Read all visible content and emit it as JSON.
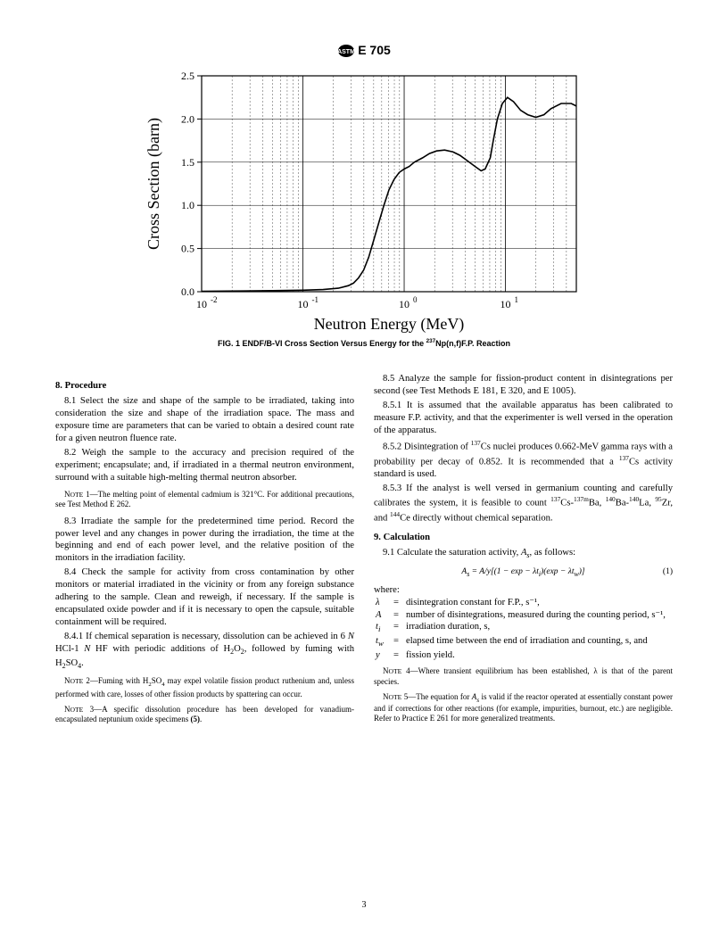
{
  "header": {
    "designation": "E 705"
  },
  "figure": {
    "type": "line",
    "title": "Cross Section (barn)",
    "ylabel": "Cross Section (barn)",
    "xlabel": "Neutron Energy (MeV)",
    "caption_prefix": "FIG. 1 ENDF/B-VI Cross Section Versus Energy for the ",
    "caption_iso": "237",
    "caption_suffix": "Np(n,f)F.P. Reaction",
    "xlim_log": [
      -2,
      1.7
    ],
    "ylim": [
      0.0,
      2.5
    ],
    "ytick_step": 0.5,
    "yticks": [
      "0.0",
      "0.5",
      "1.0",
      "1.5",
      "2.0",
      "2.5"
    ],
    "x_major_log": [
      -2,
      -1,
      0,
      1
    ],
    "xtick_labels": [
      "10",
      "10",
      "10",
      "10"
    ],
    "xtick_exp": [
      "-2",
      "-1",
      "0",
      "1"
    ],
    "background_color": "#ffffff",
    "line_color": "#000000",
    "line_width": 1.6,
    "grid_color": "#000000",
    "label_fontsize": 18,
    "tick_fontsize": 12,
    "curve_points_logx_y": [
      [
        -2.0,
        0.005
      ],
      [
        -1.6,
        0.008
      ],
      [
        -1.3,
        0.012
      ],
      [
        -1.0,
        0.018
      ],
      [
        -0.8,
        0.025
      ],
      [
        -0.65,
        0.04
      ],
      [
        -0.55,
        0.07
      ],
      [
        -0.5,
        0.1
      ],
      [
        -0.45,
        0.16
      ],
      [
        -0.4,
        0.25
      ],
      [
        -0.35,
        0.4
      ],
      [
        -0.3,
        0.6
      ],
      [
        -0.25,
        0.8
      ],
      [
        -0.2,
        1.0
      ],
      [
        -0.15,
        1.18
      ],
      [
        -0.1,
        1.3
      ],
      [
        -0.05,
        1.38
      ],
      [
        0.0,
        1.42
      ],
      [
        0.05,
        1.45
      ],
      [
        0.1,
        1.5
      ],
      [
        0.18,
        1.55
      ],
      [
        0.25,
        1.6
      ],
      [
        0.32,
        1.63
      ],
      [
        0.4,
        1.64
      ],
      [
        0.48,
        1.62
      ],
      [
        0.55,
        1.58
      ],
      [
        0.62,
        1.52
      ],
      [
        0.7,
        1.45
      ],
      [
        0.76,
        1.4
      ],
      [
        0.8,
        1.42
      ],
      [
        0.85,
        1.55
      ],
      [
        0.88,
        1.75
      ],
      [
        0.92,
        2.0
      ],
      [
        0.97,
        2.18
      ],
      [
        1.02,
        2.25
      ],
      [
        1.08,
        2.2
      ],
      [
        1.15,
        2.1
      ],
      [
        1.22,
        2.05
      ],
      [
        1.3,
        2.02
      ],
      [
        1.38,
        2.05
      ],
      [
        1.45,
        2.12
      ],
      [
        1.55,
        2.18
      ],
      [
        1.65,
        2.18
      ],
      [
        1.7,
        2.15
      ]
    ]
  },
  "section8": {
    "head": "8.  Procedure",
    "p81": "8.1  Select the size and shape of the sample to be irradiated, taking into consideration the size and shape of the irradiation space. The mass and exposure time are parameters that can be varied to obtain a desired count rate for a given neutron fluence rate.",
    "p82": "8.2  Weigh the sample to the accuracy and precision required of the experiment; encapsulate; and, if irradiated in a thermal neutron environment, surround with a suitable high-melting thermal neutron absorber.",
    "note1": "NOTE 1—The melting point of elemental cadmium is 321°C. For additional precautions, see Test Method E 262.",
    "p83": "8.3  Irradiate the sample for the predetermined time period. Record the power level and any changes in power during the irradiation, the time at the beginning and end of each power level, and the relative position of the monitors in the irradiation facility.",
    "p84": "8.4  Check the sample for activity from cross contamination by other monitors or material irradiated in the vicinity or from any foreign substance adhering to the sample. Clean and reweigh, if necessary. If the sample is encapsulated oxide powder and if it is necessary to open the capsule, suitable containment will be required.",
    "p841_pre": "8.4.1  If chemical separation is necessary, dissolution can be achieved in 6 ",
    "p841_n1": "N",
    "p841_mid": " HCl-1 ",
    "p841_n2": "N",
    "p841_mid2": " HF with periodic additions of H",
    "p841_end": ", followed by fuming with H",
    "note2_pre": "NOTE 2—Fuming with H",
    "note2_post": " may expel volatile fission product ruthenium and, unless performed with care, losses of other fission products by spattering can occur.",
    "note3": "NOTE 3—A specific dissolution procedure has been developed for vanadium-encapsulated neptunium oxide specimens (5).",
    "p85": "8.5  Analyze the sample for fission-product content in disintegrations per second (see Test Methods E 181, E 320, and E 1005).",
    "p851": "8.5.1  It is assumed that the available apparatus has been calibrated to measure F.P. activity, and that the experimenter is well versed in the operation of the apparatus.",
    "p852_pre": "8.5.2  Disintegration of  ",
    "p852_post": "Cs nuclei produces 0.662-MeV gamma rays with a probability per decay of 0.852. It is recommended that a  ",
    "p852_end": "Cs activity standard is used.",
    "p853_pre": "8.5.3  If the analyst is well versed in germanium counting and carefully calibrates the system, it is feasible to count ",
    "p853_post": "Ce directly without chemical separation."
  },
  "section9": {
    "head": "9.  Calculation",
    "p91_pre": "9.1  Calculate the saturation activity, ",
    "p91_sym": "A",
    "p91_sub": "s",
    "p91_post": ", as follows:",
    "eqn_text": "Aₛ = A/y[(1 − exp − λtᵢ)(exp − λt_w)]",
    "eqn_num": "(1)",
    "where_label": "where:",
    "defs": [
      {
        "sym": "λ",
        "def": "disintegration constant for F.P., s⁻¹,"
      },
      {
        "sym": "A",
        "def": "number of disintegrations, measured during the counting period, s⁻¹,"
      },
      {
        "sym": "tᵢ",
        "def": "irradiation duration, s,"
      },
      {
        "sym": "t_w",
        "def": "elapsed time between the end of irradiation and counting, s, and"
      },
      {
        "sym": "y",
        "def": "fission yield."
      }
    ],
    "note4": "NOTE 4—Where transient equilibrium has been established, λ is that of the parent species.",
    "note5_pre": "NOTE 5—The equation for ",
    "note5_post": " is valid if the reactor operated at essentially constant power and if corrections for other reactions (for example, impurities, burnout, etc.) are negligible. Refer to Practice E 261 for more generalized treatments."
  },
  "pagenum": "3"
}
